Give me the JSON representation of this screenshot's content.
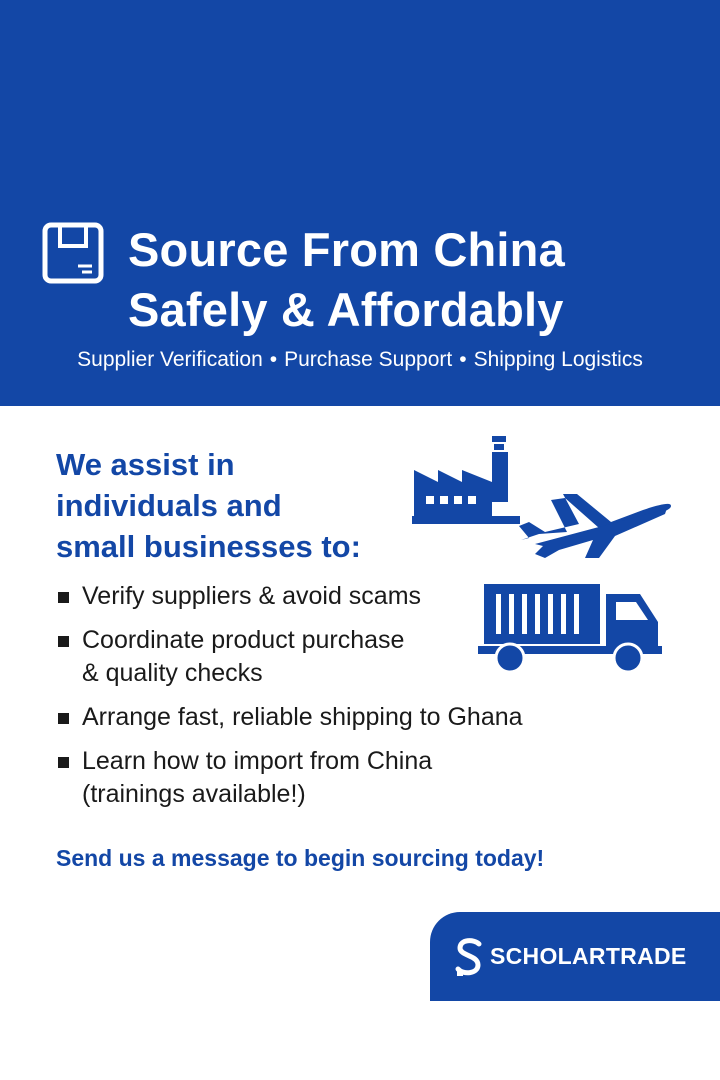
{
  "hero": {
    "title_line1": "Source From China",
    "title_line2": "Safely & Affordably",
    "services": [
      "Supplier Verification",
      "Purchase Support",
      "Shipping Logistics"
    ],
    "separator": "•",
    "background_color": "#1347a6"
  },
  "main": {
    "lead_line1": "We assist in",
    "lead_line2": "individuals and",
    "lead_line3": "small businesses to:",
    "items": [
      {
        "line1": "Verify suppliers & avoid scams",
        "line2": ""
      },
      {
        "line1": "Coordinate product purchase",
        "line2": "& quality checks"
      },
      {
        "line1": "Arrange fast, reliable shipping to Ghana",
        "line2": ""
      },
      {
        "line1": "Learn how to import from China",
        "line2": "(trainings available!)"
      }
    ],
    "cta": "Send us a message to begin sourcing today!"
  },
  "brand": {
    "name": "SCHOLARTRADE",
    "logo_letter": "S"
  },
  "icons": [
    "box-icon",
    "factory-icon",
    "airplane-icon",
    "truck-icon",
    "bullet-icon"
  ],
  "colors": {
    "accent": "#1347a6",
    "text": "#1a1a1a",
    "background": "#ffffff"
  }
}
